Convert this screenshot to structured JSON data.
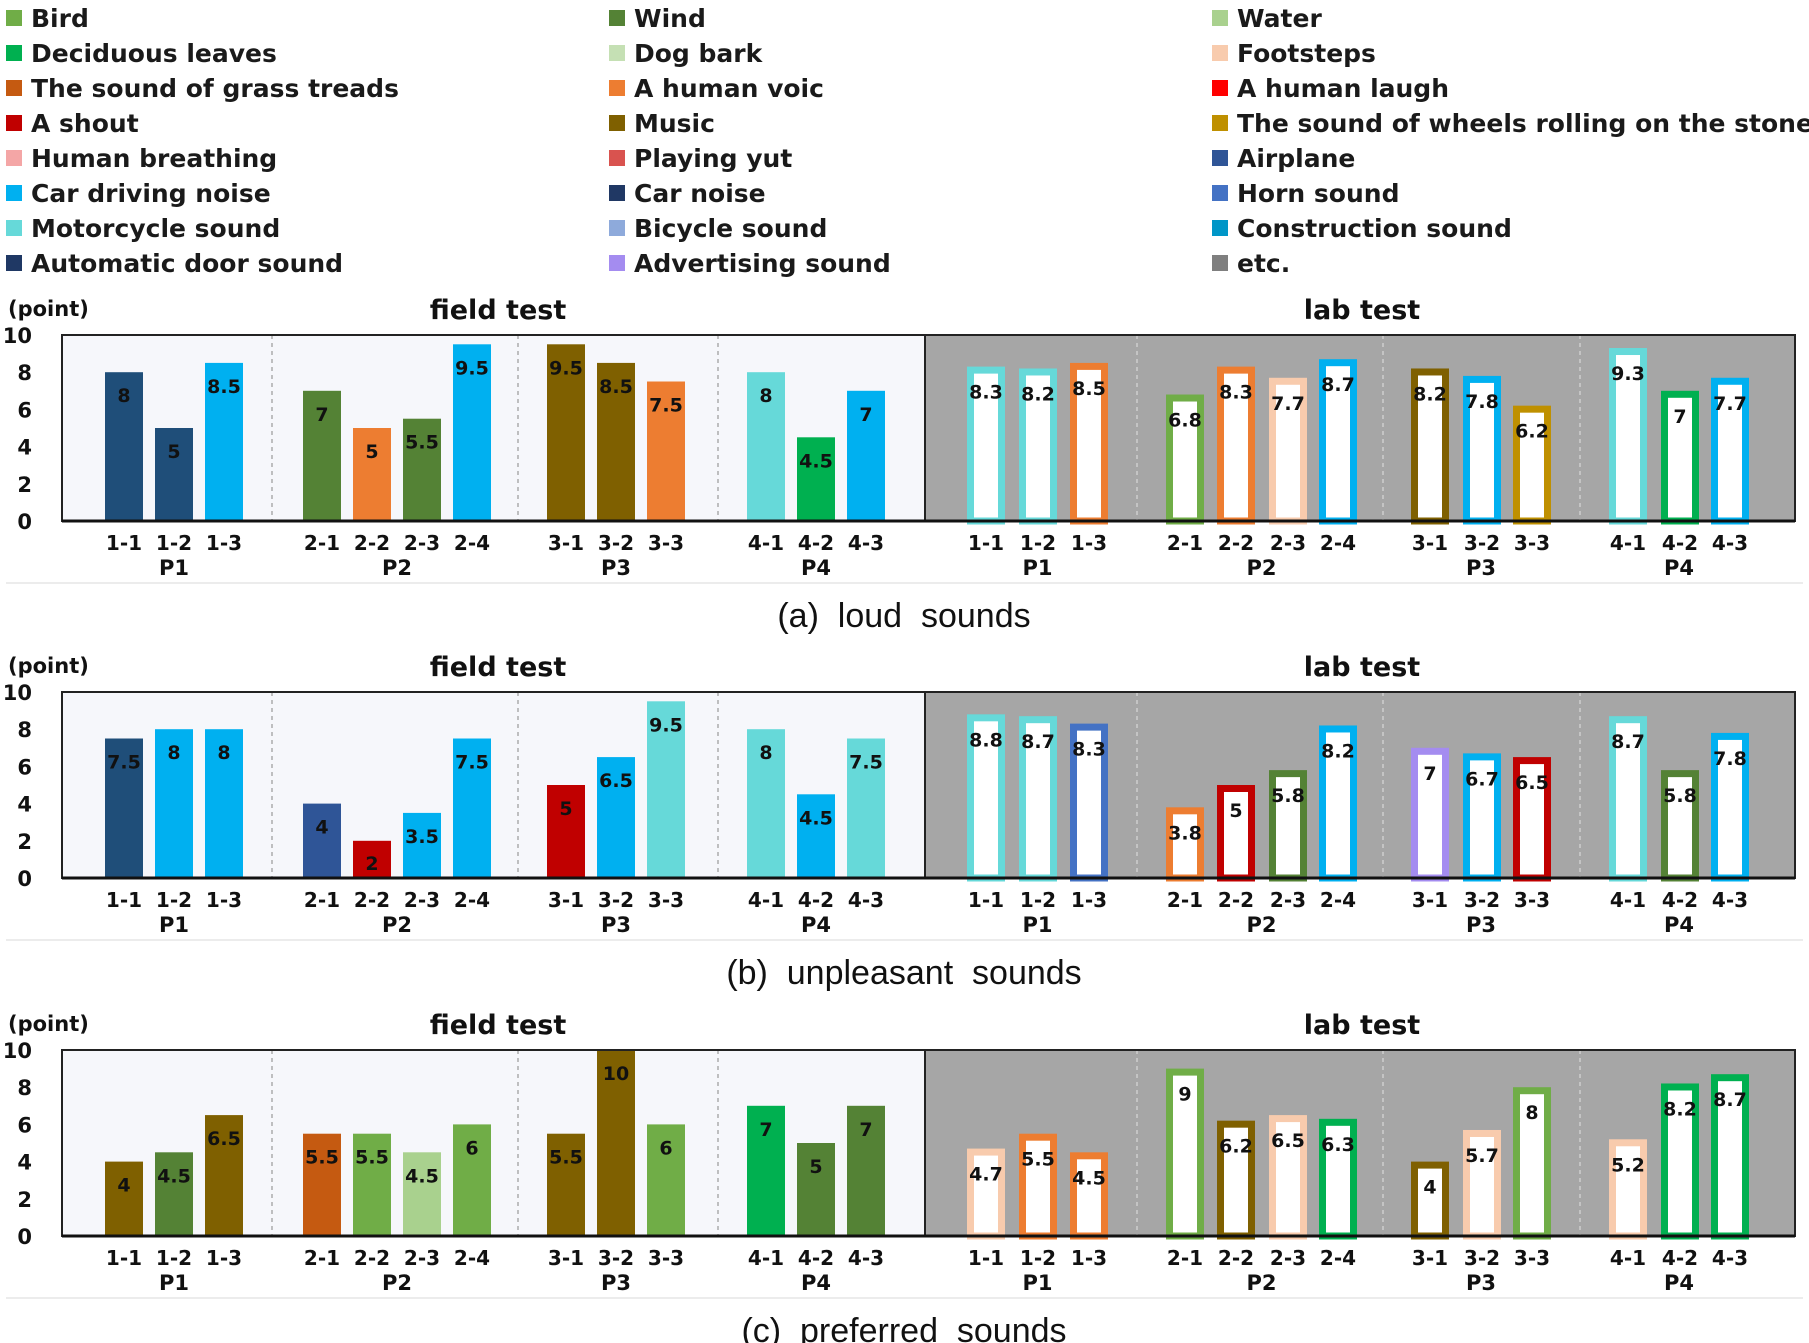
{
  "legend": [
    {
      "label": "Bird",
      "color": "#70ad47"
    },
    {
      "label": "Wind",
      "color": "#548235"
    },
    {
      "label": "Water",
      "color": "#a9d18e"
    },
    {
      "label": "Deciduous leaves",
      "color": "#00b050"
    },
    {
      "label": "Dog bark",
      "color": "#c5e0b4"
    },
    {
      "label": "Footsteps",
      "color": "#f8cbad"
    },
    {
      "label": "The sound of grass treads",
      "color": "#c55a11"
    },
    {
      "label": "A human voic",
      "color": "#ed7d31"
    },
    {
      "label": "A human laugh",
      "color": "#ff0000"
    },
    {
      "label": "A shout",
      "color": "#c00000"
    },
    {
      "label": "Music",
      "color": "#7f6000"
    },
    {
      "label": "The sound of wheels rolling on the stone floor",
      "color": "#bf9000"
    },
    {
      "label": "Human breathing",
      "color": "#f4a6a6"
    },
    {
      "label": "Playing yut",
      "color": "#d9534f"
    },
    {
      "label": "Airplane",
      "color": "#2f5597"
    },
    {
      "label": "Car driving noise",
      "color": "#00b0f0"
    },
    {
      "label": "Car noise",
      "color": "#203864"
    },
    {
      "label": "Horn sound",
      "color": "#4472c4"
    },
    {
      "label": "Motorcycle sound",
      "color": "#66d9d9"
    },
    {
      "label": "Bicycle sound",
      "color": "#8eaadb"
    },
    {
      "label": "Construction sound",
      "color": "#0096c7"
    },
    {
      "label": "Automatic door sound",
      "color": "#1f3864"
    },
    {
      "label": "Advertising sound",
      "color": "#a48cf0"
    },
    {
      "label": "etc.",
      "color": "#7f7f7f"
    }
  ],
  "chart_data": [
    {
      "type": "bar",
      "caption": "(a)  loud  sounds",
      "unit": "(point)",
      "ylim": [
        0,
        10
      ],
      "yticks": [
        "0",
        "2",
        "4",
        "6",
        "8",
        "10"
      ],
      "field_title": "field test",
      "lab_title": "lab test",
      "groups": [
        {
          "name": "P1",
          "categories": [
            "1-1",
            "1-2",
            "1-3"
          ]
        },
        {
          "name": "P2",
          "categories": [
            "2-1",
            "2-2",
            "2-3",
            "2-4"
          ]
        },
        {
          "name": "P3",
          "categories": [
            "3-1",
            "3-2",
            "3-3"
          ]
        },
        {
          "name": "P4",
          "categories": [
            "4-1",
            "4-2",
            "4-3"
          ]
        }
      ],
      "field": {
        "values": [
          8,
          5,
          8.5,
          7,
          5,
          5.5,
          9.5,
          9.5,
          8.5,
          7.5,
          8,
          4.5,
          7
        ],
        "colors": [
          "#1f4e79",
          "#1f4e79",
          "#00b0f0",
          "#548235",
          "#ed7d31",
          "#548235",
          "#00b0f0",
          "#7f6000",
          "#7f6000",
          "#ed7d31",
          "#66d9d9",
          "#00b050",
          "#00b0f0"
        ]
      },
      "lab": {
        "values": [
          8.3,
          8.2,
          8.5,
          6.8,
          8.3,
          7.7,
          8.7,
          8.2,
          7.8,
          6.2,
          9.3,
          7,
          7.7
        ],
        "colors": [
          "#66d9d9",
          "#66d9d9",
          "#ed7d31",
          "#70ad47",
          "#ed7d31",
          "#f8cbad",
          "#00b0f0",
          "#7f6000",
          "#00b0f0",
          "#bf9000",
          "#66d9d9",
          "#00b050",
          "#00b0f0"
        ]
      }
    },
    {
      "type": "bar",
      "caption": "(b)  unpleasant  sounds",
      "unit": "(point)",
      "ylim": [
        0,
        10
      ],
      "yticks": [
        "0",
        "2",
        "4",
        "6",
        "8",
        "10"
      ],
      "field_title": "field test",
      "lab_title": "lab test",
      "groups": [
        {
          "name": "P1",
          "categories": [
            "1-1",
            "1-2",
            "1-3"
          ]
        },
        {
          "name": "P2",
          "categories": [
            "2-1",
            "2-2",
            "2-3",
            "2-4"
          ]
        },
        {
          "name": "P3",
          "categories": [
            "3-1",
            "3-2",
            "3-3"
          ]
        },
        {
          "name": "P4",
          "categories": [
            "4-1",
            "4-2",
            "4-3"
          ]
        }
      ],
      "field": {
        "values": [
          7.5,
          8,
          8,
          4,
          2,
          3.5,
          7.5,
          5,
          6.5,
          9.5,
          8,
          4.5,
          7.5
        ],
        "colors": [
          "#1f4e79",
          "#00b0f0",
          "#00b0f0",
          "#2f5597",
          "#c00000",
          "#00b0f0",
          "#00b0f0",
          "#c00000",
          "#00b0f0",
          "#66d9d9",
          "#66d9d9",
          "#00b0f0",
          "#66d9d9"
        ]
      },
      "lab": {
        "values": [
          8.8,
          8.7,
          8.3,
          3.8,
          5,
          5.8,
          8.2,
          7,
          6.7,
          6.5,
          8.7,
          5.8,
          7.8
        ],
        "colors": [
          "#66d9d9",
          "#66d9d9",
          "#4472c4",
          "#ed7d31",
          "#c00000",
          "#548235",
          "#00b0f0",
          "#a48cf0",
          "#00b0f0",
          "#c00000",
          "#66d9d9",
          "#548235",
          "#00b0f0"
        ]
      }
    },
    {
      "type": "bar",
      "caption": "(c)  preferred  sounds",
      "unit": "(point)",
      "ylim": [
        0,
        10
      ],
      "yticks": [
        "0",
        "2",
        "4",
        "6",
        "8",
        "10"
      ],
      "field_title": "field test",
      "lab_title": "lab test",
      "groups": [
        {
          "name": "P1",
          "categories": [
            "1-1",
            "1-2",
            "1-3"
          ]
        },
        {
          "name": "P2",
          "categories": [
            "2-1",
            "2-2",
            "2-3",
            "2-4"
          ]
        },
        {
          "name": "P3",
          "categories": [
            "3-1",
            "3-2",
            "3-3"
          ]
        },
        {
          "name": "P4",
          "categories": [
            "4-1",
            "4-2",
            "4-3"
          ]
        }
      ],
      "field": {
        "values": [
          4,
          4.5,
          6.5,
          5.5,
          5.5,
          4.5,
          6,
          5.5,
          10,
          6,
          7,
          5,
          7
        ],
        "colors": [
          "#7f6000",
          "#548235",
          "#7f6000",
          "#c55a11",
          "#70ad47",
          "#a9d18e",
          "#70ad47",
          "#7f6000",
          "#7f6000",
          "#70ad47",
          "#00b050",
          "#548235",
          "#548235"
        ]
      },
      "lab": {
        "values": [
          4.7,
          5.5,
          4.5,
          9,
          6.2,
          6.5,
          6.3,
          4,
          5.7,
          8,
          5.2,
          8.2,
          8.7
        ],
        "colors": [
          "#f8cbad",
          "#ed7d31",
          "#ed7d31",
          "#70ad47",
          "#7f6000",
          "#f8cbad",
          "#00b050",
          "#7f6000",
          "#f8cbad",
          "#70ad47",
          "#f8cbad",
          "#00b050",
          "#00b050"
        ]
      }
    }
  ]
}
